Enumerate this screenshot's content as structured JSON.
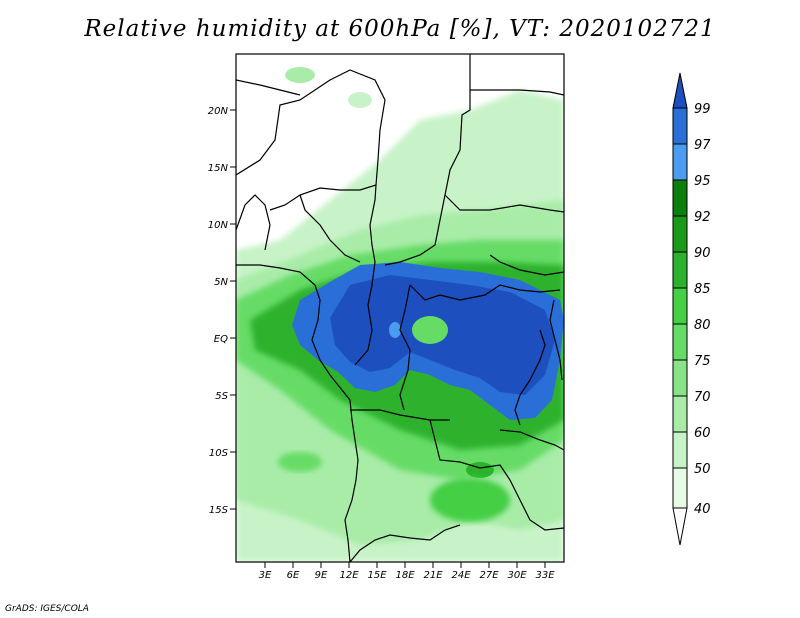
{
  "title": "Relative humidity at 600hPa [%], VT: 2020102721",
  "credit": "GrADS: IGES/COLA",
  "map": {
    "lat_labels": [
      "20N",
      "15N",
      "10N",
      "5N",
      "EQ",
      "5S",
      "10S",
      "15S"
    ],
    "lon_labels": [
      "3E",
      "6E",
      "9E",
      "12E",
      "15E",
      "18E",
      "21E",
      "24E",
      "27E",
      "30E",
      "33E"
    ]
  },
  "colorbar": {
    "levels": [
      "40",
      "50",
      "60",
      "70",
      "75",
      "80",
      "85",
      "90",
      "92",
      "95",
      "97",
      "99"
    ],
    "colors": [
      "#ffffff",
      "#e6fbe6",
      "#c8f3c8",
      "#a8eca8",
      "#88e388",
      "#66dc66",
      "#45cf45",
      "#2db22d",
      "#199a19",
      "#0c800c",
      "#4b9bf0",
      "#2a6fd8",
      "#1d4fbe"
    ]
  }
}
